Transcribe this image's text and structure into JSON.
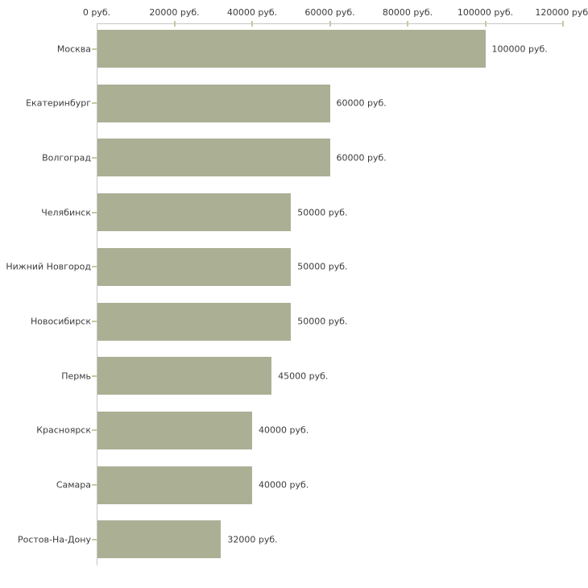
{
  "chart_data": {
    "type": "bar",
    "orientation": "horizontal",
    "title": "",
    "xlabel": "",
    "ylabel": "",
    "categories": [
      "Москва",
      "Екатеринбург",
      "Волгоград",
      "Челябинск",
      "Нижний Новгород",
      "Новосибирск",
      "Пермь",
      "Красноярск",
      "Самара",
      "Ростов-На-Дону"
    ],
    "values": [
      100000,
      60000,
      60000,
      50000,
      50000,
      50000,
      45000,
      40000,
      40000,
      32000
    ],
    "value_labels": [
      "100000 руб.",
      "60000 руб.",
      "60000 руб.",
      "50000 руб.",
      "50000 руб.",
      "50000 руб.",
      "45000 руб.",
      "40000 руб.",
      "40000 руб.",
      "32000 руб."
    ],
    "x_axis": {
      "position": "top",
      "min": 0,
      "max": 120000,
      "ticks": [
        0,
        20000,
        40000,
        60000,
        80000,
        100000,
        120000
      ],
      "tick_labels": [
        "0 руб.",
        "20000 руб.",
        "40000 руб.",
        "60000 руб.",
        "80000 руб.",
        "100000 руб.",
        "120000 руб."
      ]
    },
    "legend": {
      "visible": false
    },
    "grid": false,
    "colors": {
      "bar": "#abaf94",
      "axis_line": "#c6c6c6",
      "axis_tick": "#c8c8a0",
      "text": "#3c3c3c",
      "background": "#ffffff"
    }
  }
}
